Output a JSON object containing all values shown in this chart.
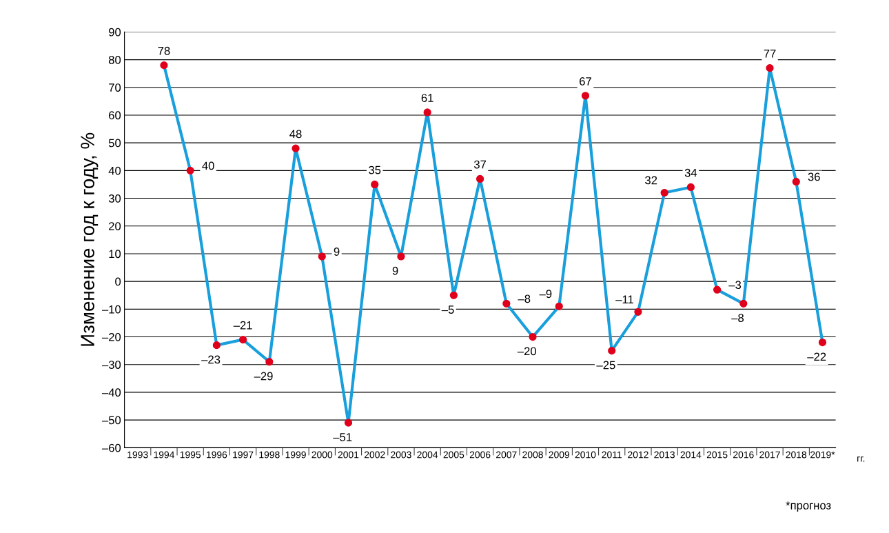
{
  "chart_data": {
    "type": "line",
    "ylabel": "Изменение год к году, %",
    "xlabel": "гг.",
    "categories": [
      "1993",
      "1994",
      "1995",
      "1996",
      "1997",
      "1998",
      "1999",
      "2000",
      "2001",
      "2002",
      "2003",
      "2004",
      "2005",
      "2006",
      "2007",
      "2008",
      "2009",
      "2010",
      "2011",
      "2012",
      "2013",
      "2014",
      "2015",
      "2016",
      "2017",
      "2018",
      "2019*"
    ],
    "series": [
      {
        "color": "#189fdc",
        "values": [
          null,
          78,
          40,
          -23,
          -21,
          -29,
          48,
          9,
          -51,
          35,
          9,
          61,
          -5,
          37,
          -8,
          -20,
          -9,
          67,
          -25,
          -11,
          32,
          34,
          -3,
          -8,
          77,
          36,
          -22
        ],
        "colors": [
          "#e0001b",
          "#e0001b",
          "#e0001b",
          "#e0001b",
          "#e0001b",
          "#e0001b",
          "#e0001b",
          "#e0001b",
          "#e0001b",
          "#e0001b",
          "#e0001b",
          "#e0001b",
          "#e0001b",
          "#e0001b",
          "#e0001b",
          "#e0001b",
          "#e0001b",
          "#e0001b",
          "#e0001b",
          "#e0001b",
          "#e0001b",
          "#e0001b",
          "#e0001b",
          "#e0001b",
          "#e0001b",
          "#e0001b",
          "#e0001b"
        ],
        "value_labels": [
          null,
          "78",
          "40",
          "–23",
          "–21",
          "–29",
          "48",
          "9",
          "–51",
          "35",
          "9",
          "61",
          "–5",
          "37",
          "–8",
          "–20",
          "–9",
          "67",
          "–25",
          "–11",
          "32",
          "34",
          "–3",
          "–8",
          "77",
          "36",
          "–22"
        ]
      }
    ],
    "marker": "circle",
    "ylim": [
      -60,
      90
    ],
    "yticks": [
      {
        "value": -60,
        "label": "–60"
      },
      {
        "value": -50,
        "label": "–50"
      },
      {
        "value": -40,
        "label": "–40"
      },
      {
        "value": -30,
        "label": "–30"
      },
      {
        "value": -20,
        "label": "–20"
      },
      {
        "value": -10,
        "label": "–10"
      },
      0,
      10,
      20,
      30,
      40,
      50,
      60,
      70,
      80,
      90
    ],
    "grid": "y",
    "legend": false,
    "annotations": [
      "*прогноз"
    ]
  }
}
